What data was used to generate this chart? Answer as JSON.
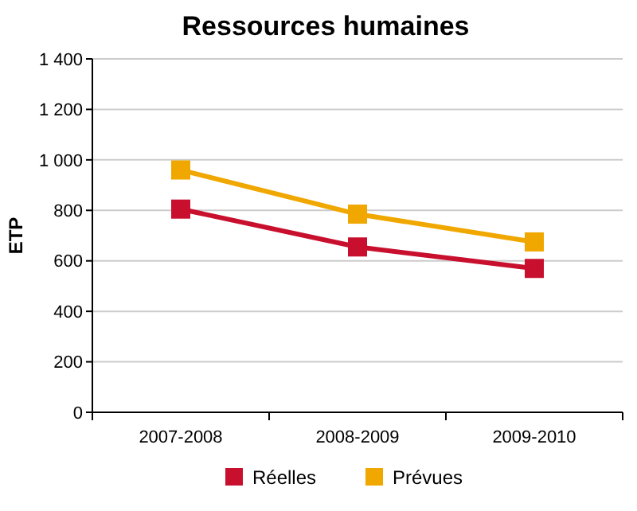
{
  "chart_data": {
    "type": "line",
    "title": "Ressources humaines",
    "ylabel": "ETP",
    "categories": [
      "2007-2008",
      "2008-2009",
      "2009-2010"
    ],
    "series": [
      {
        "name": "Réelles",
        "color": "#c8102e",
        "values": [
          805,
          655,
          570
        ]
      },
      {
        "name": "Prévues",
        "color": "#f0a800",
        "values": [
          960,
          785,
          675
        ]
      }
    ],
    "ylim": [
      0,
      1400
    ],
    "yticks": [
      0,
      200,
      400,
      600,
      800,
      {
        "value": 1000,
        "label": "1 000"
      },
      {
        "value": 1200,
        "label": "1 200"
      },
      {
        "value": 1400,
        "label": "1 400"
      }
    ],
    "grid": "y",
    "legend": "bottom",
    "marker": "square",
    "line_style": "solid"
  }
}
